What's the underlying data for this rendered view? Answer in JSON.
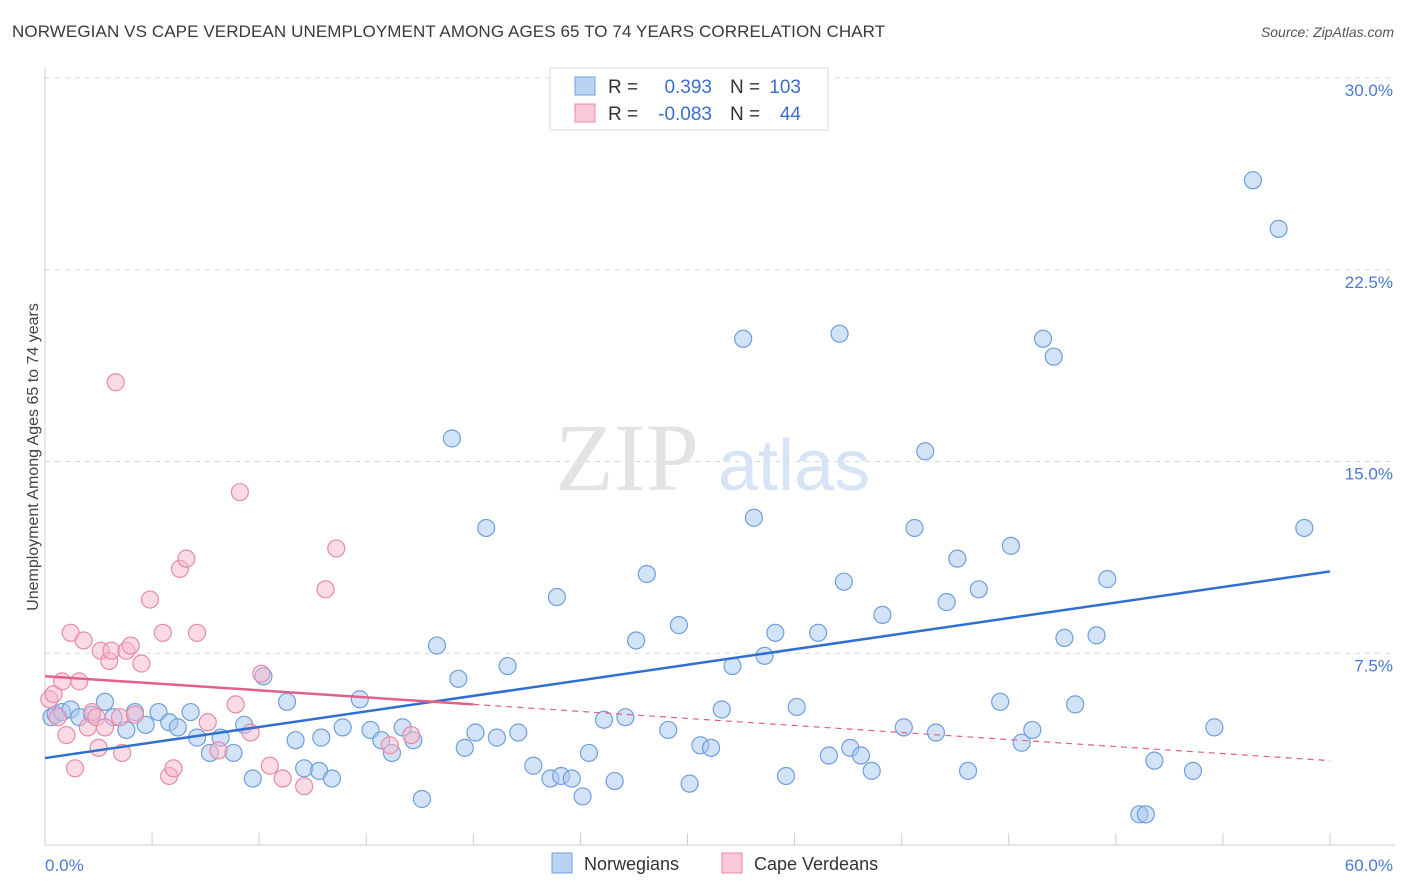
{
  "title": "NORWEGIAN VS CAPE VERDEAN UNEMPLOYMENT AMONG AGES 65 TO 74 YEARS CORRELATION CHART",
  "source": "Source: ZipAtlas.com",
  "watermark": {
    "zip": "ZIP",
    "atlas": "atlas"
  },
  "colors": {
    "norwegians_fill": "#a8c8f0",
    "norwegians_stroke": "#6f9fdc",
    "norwegians_line": "#2f6fd0",
    "capeverdeans_fill": "#f6b8cb",
    "capeverdeans_stroke": "#e88aa8",
    "capeverdeans_line": "#e0608a",
    "grid": "#d9d9d9",
    "axis_text": "#4a7bd0"
  },
  "legend": {
    "rows": [
      {
        "r_label": "R =",
        "r_value": "0.393",
        "n_label": "N =",
        "n_value": "103"
      },
      {
        "r_label": "R =",
        "r_value": "-0.083",
        "n_label": "N =",
        "n_value": "44"
      }
    ]
  },
  "bottom_legend": [
    "Norwegians",
    "Cape Verdeans"
  ],
  "chart_data": {
    "type": "scatter",
    "title": "NORWEGIAN VS CAPE VERDEAN UNEMPLOYMENT AMONG AGES 65 TO 74 YEARS CORRELATION CHART",
    "xlabel": "",
    "ylabel": "Unemployment Among Ages 65 to 74 years",
    "xlim": [
      0,
      60
    ],
    "ylim": [
      0,
      30
    ],
    "x_tick_labels": [
      "0.0%",
      "60.0%"
    ],
    "y_ticks": [
      7.5,
      15.0,
      22.5,
      30.0
    ],
    "y_tick_labels": [
      "7.5%",
      "15.0%",
      "22.5%",
      "30.0%"
    ],
    "grid": true,
    "legend_placement": "top-center",
    "series": [
      {
        "name": "Norwegians",
        "trend": {
          "x": [
            0,
            60
          ],
          "y": [
            3.4,
            10.7
          ],
          "style": "solid"
        },
        "points": [
          [
            0.3,
            5.0
          ],
          [
            0.5,
            5.1
          ],
          [
            0.8,
            5.2
          ],
          [
            1.2,
            5.3
          ],
          [
            1.6,
            5.0
          ],
          [
            2.2,
            5.1
          ],
          [
            2.8,
            5.6
          ],
          [
            3.2,
            5.0
          ],
          [
            3.8,
            4.5
          ],
          [
            4.2,
            5.2
          ],
          [
            4.7,
            4.7
          ],
          [
            5.3,
            5.2
          ],
          [
            5.8,
            4.8
          ],
          [
            6.2,
            4.6
          ],
          [
            6.8,
            5.2
          ],
          [
            7.1,
            4.2
          ],
          [
            7.7,
            3.6
          ],
          [
            8.2,
            4.2
          ],
          [
            8.8,
            3.6
          ],
          [
            9.3,
            4.7
          ],
          [
            9.7,
            2.6
          ],
          [
            10.2,
            6.6
          ],
          [
            11.3,
            5.6
          ],
          [
            11.7,
            4.1
          ],
          [
            12.1,
            3.0
          ],
          [
            12.8,
            2.9
          ],
          [
            12.9,
            4.2
          ],
          [
            13.4,
            2.6
          ],
          [
            13.9,
            4.6
          ],
          [
            14.7,
            5.7
          ],
          [
            15.2,
            4.5
          ],
          [
            15.7,
            4.1
          ],
          [
            16.2,
            3.6
          ],
          [
            16.7,
            4.6
          ],
          [
            17.2,
            4.1
          ],
          [
            17.6,
            1.8
          ],
          [
            18.3,
            7.8
          ],
          [
            19.0,
            15.9
          ],
          [
            19.3,
            6.5
          ],
          [
            19.6,
            3.8
          ],
          [
            20.1,
            4.4
          ],
          [
            20.6,
            12.4
          ],
          [
            21.1,
            4.2
          ],
          [
            21.6,
            7.0
          ],
          [
            22.1,
            4.4
          ],
          [
            22.8,
            3.1
          ],
          [
            23.6,
            2.6
          ],
          [
            23.9,
            9.7
          ],
          [
            24.1,
            2.7
          ],
          [
            24.6,
            2.6
          ],
          [
            25.1,
            1.9
          ],
          [
            25.4,
            3.6
          ],
          [
            26.1,
            4.9
          ],
          [
            26.6,
            2.5
          ],
          [
            27.1,
            5.0
          ],
          [
            27.6,
            8.0
          ],
          [
            28.1,
            10.6
          ],
          [
            29.1,
            4.5
          ],
          [
            29.6,
            8.6
          ],
          [
            30.1,
            2.4
          ],
          [
            30.6,
            3.9
          ],
          [
            31.1,
            3.8
          ],
          [
            31.6,
            5.3
          ],
          [
            32.1,
            7.0
          ],
          [
            32.6,
            19.8
          ],
          [
            33.1,
            12.8
          ],
          [
            33.6,
            7.4
          ],
          [
            34.1,
            8.3
          ],
          [
            34.6,
            2.7
          ],
          [
            35.1,
            5.4
          ],
          [
            36.1,
            8.3
          ],
          [
            36.6,
            3.5
          ],
          [
            37.1,
            20.0
          ],
          [
            37.3,
            10.3
          ],
          [
            37.6,
            3.8
          ],
          [
            38.1,
            3.5
          ],
          [
            38.6,
            2.9
          ],
          [
            39.1,
            9.0
          ],
          [
            40.1,
            4.6
          ],
          [
            40.6,
            12.4
          ],
          [
            41.1,
            15.4
          ],
          [
            41.6,
            4.4
          ],
          [
            42.1,
            9.5
          ],
          [
            42.6,
            11.2
          ],
          [
            43.1,
            2.9
          ],
          [
            43.6,
            10.0
          ],
          [
            44.6,
            5.6
          ],
          [
            45.1,
            11.7
          ],
          [
            45.6,
            4.0
          ],
          [
            46.1,
            4.5
          ],
          [
            46.6,
            19.8
          ],
          [
            47.1,
            19.1
          ],
          [
            47.6,
            8.1
          ],
          [
            48.1,
            5.5
          ],
          [
            49.1,
            8.2
          ],
          [
            49.6,
            10.4
          ],
          [
            51.1,
            1.2
          ],
          [
            51.4,
            1.2
          ],
          [
            51.8,
            3.3
          ],
          [
            53.6,
            2.9
          ],
          [
            54.6,
            4.6
          ],
          [
            56.4,
            26.0
          ],
          [
            57.6,
            24.1
          ],
          [
            58.8,
            12.4
          ]
        ]
      },
      {
        "name": "Cape Verdeans",
        "trend": {
          "x": [
            0,
            20
          ],
          "y": [
            6.6,
            5.5
          ],
          "style": "solid",
          "extended": {
            "x": [
              20,
              60
            ],
            "y": [
              5.5,
              3.3
            ],
            "style": "dashed"
          }
        },
        "points": [
          [
            0.2,
            5.7
          ],
          [
            0.4,
            5.9
          ],
          [
            0.6,
            5.0
          ],
          [
            0.8,
            6.4
          ],
          [
            1.0,
            4.3
          ],
          [
            1.2,
            8.3
          ],
          [
            1.4,
            3.0
          ],
          [
            1.6,
            6.4
          ],
          [
            1.8,
            8.0
          ],
          [
            2.0,
            4.6
          ],
          [
            2.2,
            5.2
          ],
          [
            2.4,
            5.0
          ],
          [
            2.5,
            3.8
          ],
          [
            2.6,
            7.6
          ],
          [
            2.8,
            4.6
          ],
          [
            3.0,
            7.2
          ],
          [
            3.1,
            7.6
          ],
          [
            3.3,
            18.1
          ],
          [
            3.5,
            5.0
          ],
          [
            3.6,
            3.6
          ],
          [
            3.8,
            7.6
          ],
          [
            4.0,
            7.8
          ],
          [
            4.2,
            5.1
          ],
          [
            4.5,
            7.1
          ],
          [
            4.9,
            9.6
          ],
          [
            5.5,
            8.3
          ],
          [
            5.8,
            2.7
          ],
          [
            6.0,
            3.0
          ],
          [
            6.3,
            10.8
          ],
          [
            6.6,
            11.2
          ],
          [
            7.1,
            8.3
          ],
          [
            7.6,
            4.8
          ],
          [
            8.1,
            3.7
          ],
          [
            8.9,
            5.5
          ],
          [
            9.1,
            13.8
          ],
          [
            9.6,
            4.4
          ],
          [
            10.1,
            6.7
          ],
          [
            10.5,
            3.1
          ],
          [
            11.1,
            2.6
          ],
          [
            12.1,
            2.3
          ],
          [
            13.1,
            10.0
          ],
          [
            13.6,
            11.6
          ],
          [
            16.1,
            3.9
          ],
          [
            17.1,
            4.3
          ]
        ]
      }
    ]
  }
}
